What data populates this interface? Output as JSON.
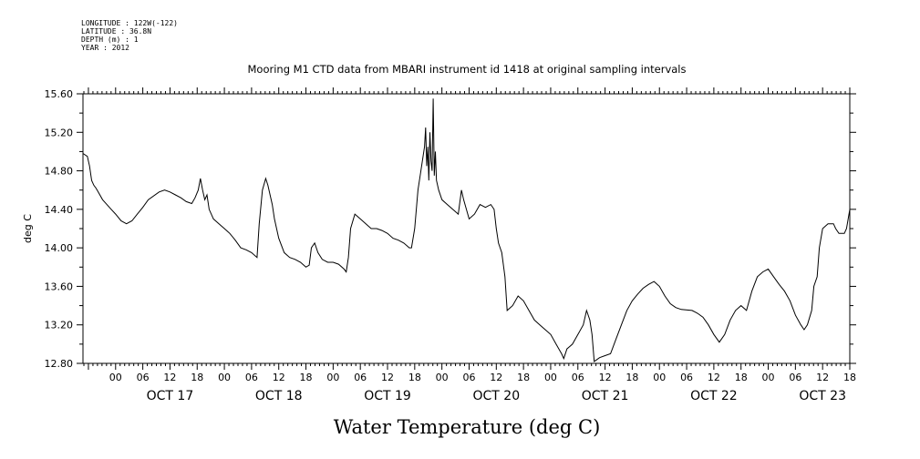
{
  "header_lines": [
    "LONGITUDE : 122W(-122)",
    "LATITUDE : 36.8N",
    "DEPTH (m) : 1",
    "YEAR : 2012"
  ],
  "chart_data": {
    "type": "line",
    "title": "Mooring M1 CTD data from MBARI instrument id 1418 at original sampling intervals",
    "ylabel": "deg C",
    "xlabel": "Water Temperature (deg C)",
    "ylim": [
      12.8,
      15.6
    ],
    "xlim": [
      -0.3,
      6.75
    ],
    "yticks": [
      "12.80",
      "13.20",
      "13.60",
      "14.00",
      "14.40",
      "14.80",
      "15.20",
      "15.60"
    ],
    "hour_labels": [
      "00",
      "06",
      "12",
      "18"
    ],
    "days": [
      "OCT 17",
      "OCT 18",
      "OCT 19",
      "OCT 20",
      "OCT 21",
      "OCT 22",
      "OCT 23"
    ],
    "x_unit": "days since Oct 17 00:00",
    "series": [
      {
        "color": "#000000",
        "points": [
          [
            -0.3,
            14.98
          ],
          [
            -0.26,
            14.95
          ],
          [
            -0.24,
            14.85
          ],
          [
            -0.22,
            14.7
          ],
          [
            -0.2,
            14.65
          ],
          [
            -0.18,
            14.62
          ],
          [
            -0.16,
            14.58
          ],
          [
            -0.12,
            14.5
          ],
          [
            -0.08,
            14.45
          ],
          [
            -0.04,
            14.4
          ],
          [
            0.0,
            14.35
          ],
          [
            0.05,
            14.28
          ],
          [
            0.1,
            14.25
          ],
          [
            0.15,
            14.28
          ],
          [
            0.2,
            14.35
          ],
          [
            0.25,
            14.42
          ],
          [
            0.3,
            14.5
          ],
          [
            0.4,
            14.58
          ],
          [
            0.45,
            14.6
          ],
          [
            0.5,
            14.58
          ],
          [
            0.55,
            14.55
          ],
          [
            0.6,
            14.52
          ],
          [
            0.65,
            14.48
          ],
          [
            0.7,
            14.46
          ],
          [
            0.73,
            14.52
          ],
          [
            0.76,
            14.6
          ],
          [
            0.78,
            14.72
          ],
          [
            0.8,
            14.6
          ],
          [
            0.82,
            14.5
          ],
          [
            0.84,
            14.55
          ],
          [
            0.86,
            14.4
          ],
          [
            0.9,
            14.3
          ],
          [
            0.95,
            14.25
          ],
          [
            1.0,
            14.2
          ],
          [
            1.05,
            14.15
          ],
          [
            1.1,
            14.08
          ],
          [
            1.15,
            14.0
          ],
          [
            1.2,
            13.98
          ],
          [
            1.25,
            13.95
          ],
          [
            1.3,
            13.9
          ],
          [
            1.32,
            14.25
          ],
          [
            1.35,
            14.6
          ],
          [
            1.38,
            14.72
          ],
          [
            1.4,
            14.65
          ],
          [
            1.42,
            14.55
          ],
          [
            1.44,
            14.45
          ],
          [
            1.46,
            14.3
          ],
          [
            1.5,
            14.1
          ],
          [
            1.55,
            13.95
          ],
          [
            1.6,
            13.9
          ],
          [
            1.65,
            13.88
          ],
          [
            1.7,
            13.85
          ],
          [
            1.75,
            13.8
          ],
          [
            1.78,
            13.82
          ],
          [
            1.8,
            14.0
          ],
          [
            1.83,
            14.05
          ],
          [
            1.86,
            13.95
          ],
          [
            1.9,
            13.88
          ],
          [
            1.95,
            13.85
          ],
          [
            2.0,
            13.85
          ],
          [
            2.05,
            13.83
          ],
          [
            2.1,
            13.78
          ],
          [
            2.12,
            13.75
          ],
          [
            2.14,
            13.9
          ],
          [
            2.16,
            14.2
          ],
          [
            2.2,
            14.35
          ],
          [
            2.25,
            14.3
          ],
          [
            2.3,
            14.25
          ],
          [
            2.35,
            14.2
          ],
          [
            2.4,
            14.2
          ],
          [
            2.45,
            14.18
          ],
          [
            2.5,
            14.15
          ],
          [
            2.55,
            14.1
          ],
          [
            2.6,
            14.08
          ],
          [
            2.65,
            14.05
          ],
          [
            2.7,
            14.0
          ],
          [
            2.72,
            14.0
          ],
          [
            2.75,
            14.2
          ],
          [
            2.78,
            14.6
          ],
          [
            2.8,
            14.75
          ],
          [
            2.82,
            14.9
          ],
          [
            2.84,
            15.05
          ],
          [
            2.85,
            15.25
          ],
          [
            2.86,
            14.85
          ],
          [
            2.87,
            15.05
          ],
          [
            2.88,
            14.7
          ],
          [
            2.89,
            15.2
          ],
          [
            2.9,
            14.9
          ],
          [
            2.91,
            14.8
          ],
          [
            2.92,
            15.55
          ],
          [
            2.93,
            14.75
          ],
          [
            2.94,
            15.0
          ],
          [
            2.95,
            14.7
          ],
          [
            2.97,
            14.6
          ],
          [
            3.0,
            14.5
          ],
          [
            3.05,
            14.45
          ],
          [
            3.1,
            14.4
          ],
          [
            3.15,
            14.35
          ],
          [
            3.18,
            14.6
          ],
          [
            3.2,
            14.5
          ],
          [
            3.25,
            14.3
          ],
          [
            3.3,
            14.35
          ],
          [
            3.35,
            14.45
          ],
          [
            3.4,
            14.42
          ],
          [
            3.45,
            14.45
          ],
          [
            3.48,
            14.4
          ],
          [
            3.5,
            14.2
          ],
          [
            3.52,
            14.05
          ],
          [
            3.55,
            13.95
          ],
          [
            3.58,
            13.7
          ],
          [
            3.6,
            13.35
          ],
          [
            3.65,
            13.4
          ],
          [
            3.7,
            13.5
          ],
          [
            3.75,
            13.45
          ],
          [
            3.8,
            13.35
          ],
          [
            3.85,
            13.25
          ],
          [
            3.9,
            13.2
          ],
          [
            3.95,
            13.15
          ],
          [
            4.0,
            13.1
          ],
          [
            4.05,
            13.0
          ],
          [
            4.1,
            12.9
          ],
          [
            4.12,
            12.85
          ],
          [
            4.15,
            12.95
          ],
          [
            4.2,
            13.0
          ],
          [
            4.25,
            13.1
          ],
          [
            4.3,
            13.2
          ],
          [
            4.33,
            13.35
          ],
          [
            4.36,
            13.25
          ],
          [
            4.38,
            13.1
          ],
          [
            4.4,
            12.82
          ],
          [
            4.45,
            12.86
          ],
          [
            4.5,
            12.88
          ],
          [
            4.55,
            12.9
          ],
          [
            4.6,
            13.05
          ],
          [
            4.65,
            13.2
          ],
          [
            4.7,
            13.35
          ],
          [
            4.75,
            13.45
          ],
          [
            4.8,
            13.52
          ],
          [
            4.85,
            13.58
          ],
          [
            4.9,
            13.62
          ],
          [
            4.95,
            13.65
          ],
          [
            5.0,
            13.6
          ],
          [
            5.05,
            13.5
          ],
          [
            5.1,
            13.42
          ],
          [
            5.15,
            13.38
          ],
          [
            5.2,
            13.36
          ],
          [
            5.3,
            13.35
          ],
          [
            5.35,
            13.32
          ],
          [
            5.4,
            13.28
          ],
          [
            5.45,
            13.2
          ],
          [
            5.5,
            13.1
          ],
          [
            5.55,
            13.02
          ],
          [
            5.6,
            13.1
          ],
          [
            5.65,
            13.25
          ],
          [
            5.7,
            13.35
          ],
          [
            5.75,
            13.4
          ],
          [
            5.8,
            13.35
          ],
          [
            5.85,
            13.55
          ],
          [
            5.9,
            13.7
          ],
          [
            5.95,
            13.75
          ],
          [
            6.0,
            13.78
          ],
          [
            6.05,
            13.7
          ],
          [
            6.1,
            13.62
          ],
          [
            6.15,
            13.55
          ],
          [
            6.2,
            13.45
          ],
          [
            6.25,
            13.3
          ],
          [
            6.3,
            13.2
          ],
          [
            6.33,
            13.15
          ],
          [
            6.36,
            13.2
          ],
          [
            6.4,
            13.35
          ],
          [
            6.42,
            13.6
          ],
          [
            6.45,
            13.7
          ],
          [
            6.47,
            14.0
          ],
          [
            6.5,
            14.2
          ],
          [
            6.55,
            14.25
          ],
          [
            6.6,
            14.25
          ],
          [
            6.62,
            14.2
          ],
          [
            6.65,
            14.15
          ],
          [
            6.7,
            14.15
          ],
          [
            6.72,
            14.2
          ],
          [
            6.75,
            14.4
          ]
        ]
      }
    ]
  }
}
